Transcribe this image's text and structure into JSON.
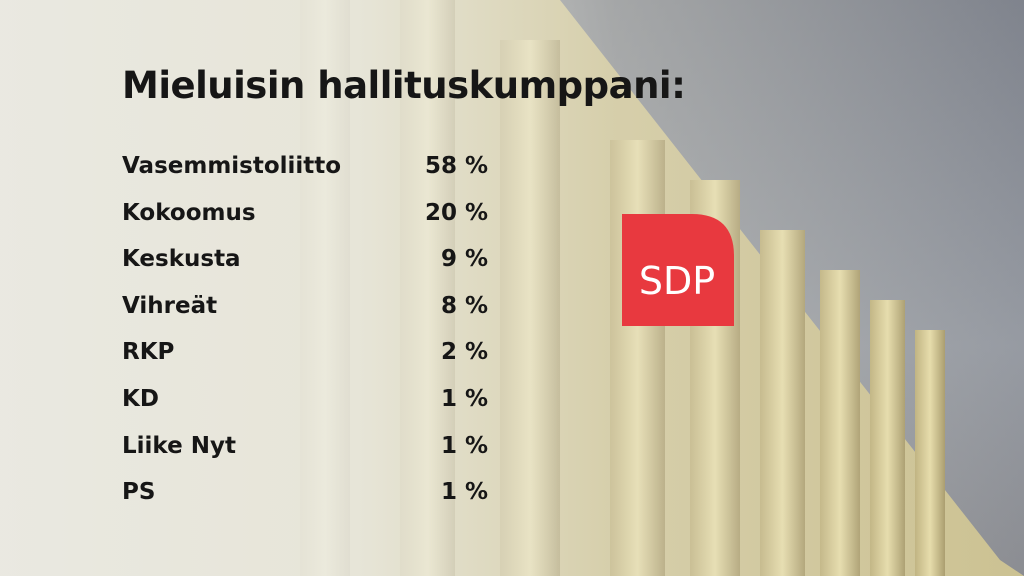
{
  "title": "Mieluisin hallituskumppani:",
  "table": {
    "rows": [
      [
        "Vasemmistoliitto",
        "58 %"
      ],
      [
        "Kokoomus",
        "20 %"
      ],
      [
        "Keskusta",
        "9 %"
      ],
      [
        "Vihreät",
        "8 %"
      ],
      [
        "RKP",
        "2 %"
      ],
      [
        "KD",
        "1 %"
      ],
      [
        "Liike Nyt",
        "1 %"
      ],
      [
        "PS",
        "1 %"
      ]
    ]
  },
  "logo": "SDP"
}
